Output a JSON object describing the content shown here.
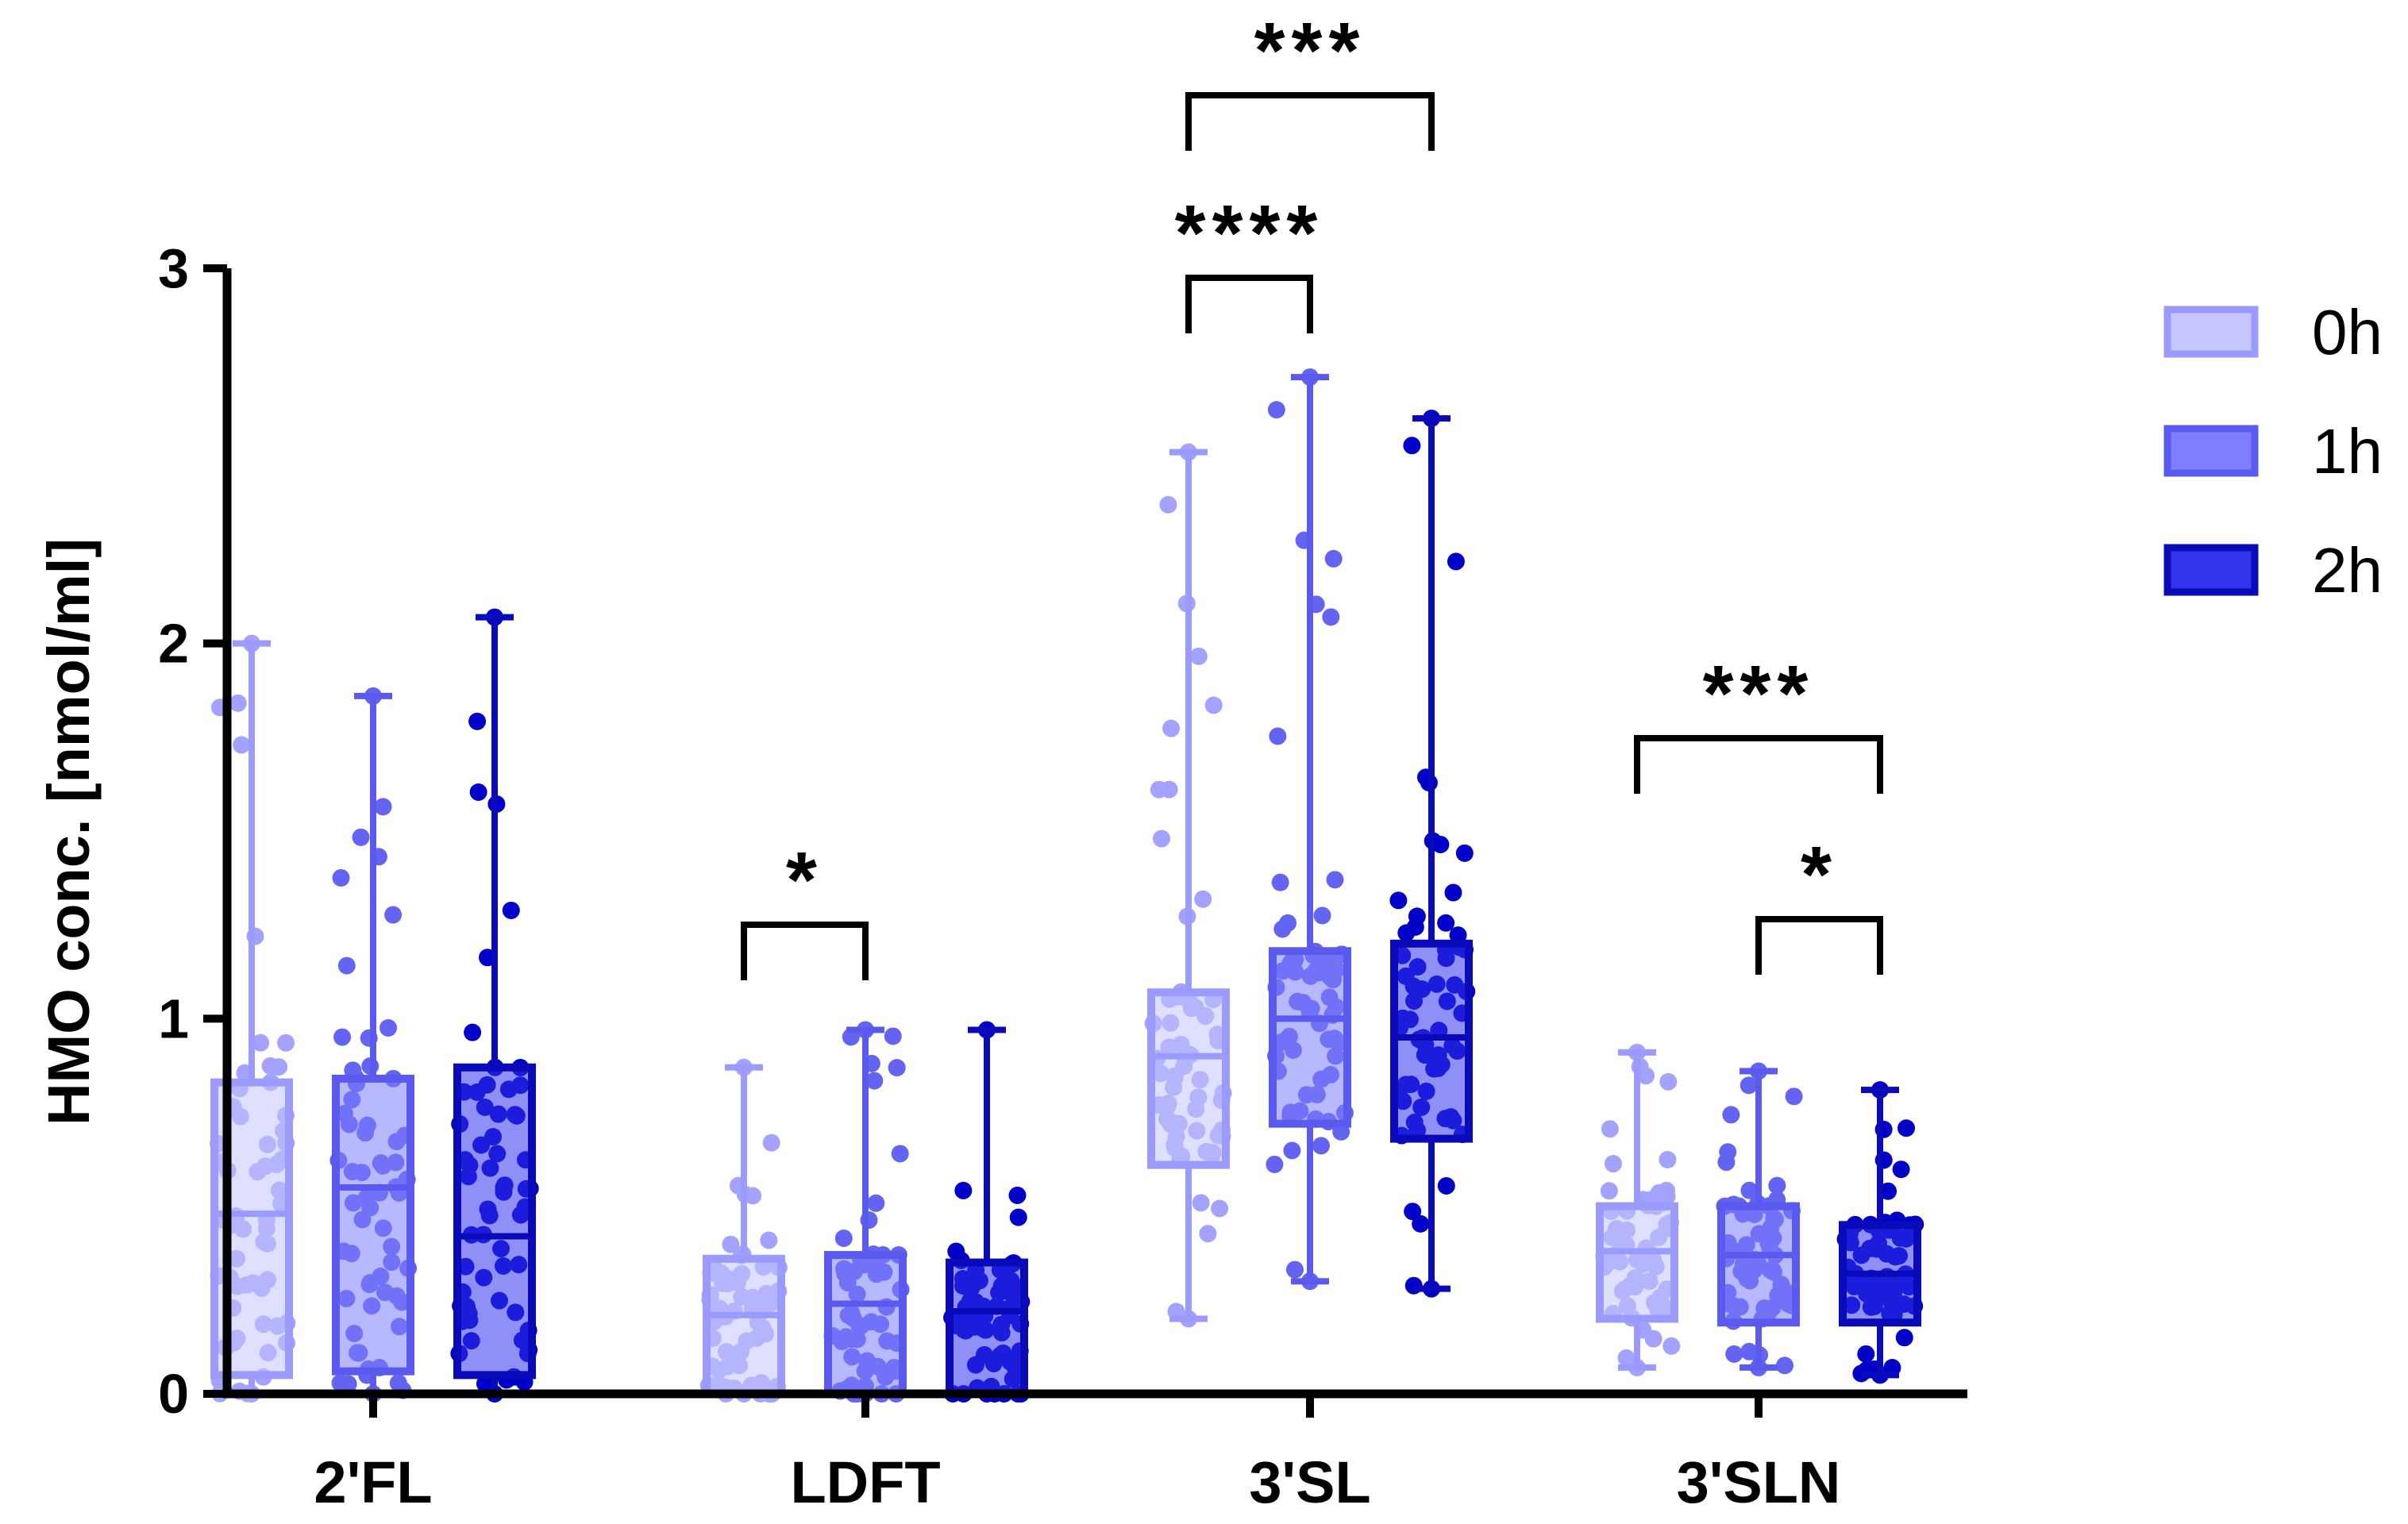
{
  "chart_data": {
    "type": "box",
    "title": "",
    "xlabel": "",
    "ylabel": "HMO conc. [nmol/ml]",
    "ylim": [
      0,
      3
    ],
    "yticks": [
      0,
      1,
      2,
      3
    ],
    "categories": [
      "2'FL",
      "LDFT",
      "3'SL",
      "3'SLN"
    ],
    "series": [
      {
        "name": "0h",
        "fill": "#c5c5ff",
        "stroke": "#9a9aff",
        "point": "#a3a3ff",
        "boxes": [
          {
            "min": 0.0,
            "q1": 0.05,
            "median": 0.48,
            "q3": 0.83,
            "max": 2.0
          },
          {
            "min": 0.0,
            "q1": 0.0,
            "median": 0.21,
            "q3": 0.36,
            "max": 0.87
          },
          {
            "min": 0.2,
            "q1": 0.61,
            "median": 0.9,
            "q3": 1.07,
            "max": 2.51
          },
          {
            "min": 0.07,
            "q1": 0.2,
            "median": 0.38,
            "q3": 0.5,
            "max": 0.91
          }
        ]
      },
      {
        "name": "1h",
        "fill": "#7d7dff",
        "stroke": "#5a5aee",
        "point": "#6464f2",
        "boxes": [
          {
            "min": 0.0,
            "q1": 0.06,
            "median": 0.55,
            "q3": 0.84,
            "max": 1.86
          },
          {
            "min": 0.0,
            "q1": 0.0,
            "median": 0.24,
            "q3": 0.37,
            "max": 0.97
          },
          {
            "min": 0.3,
            "q1": 0.72,
            "median": 1.0,
            "q3": 1.18,
            "max": 2.71
          },
          {
            "min": 0.07,
            "q1": 0.19,
            "median": 0.37,
            "q3": 0.5,
            "max": 0.86
          }
        ]
      },
      {
        "name": "2h",
        "fill": "#3333ee",
        "stroke": "#0a0ab8",
        "point": "#0000c8",
        "boxes": [
          {
            "min": 0.0,
            "q1": 0.05,
            "median": 0.42,
            "q3": 0.87,
            "max": 2.07
          },
          {
            "min": 0.0,
            "q1": 0.0,
            "median": 0.22,
            "q3": 0.35,
            "max": 0.97
          },
          {
            "min": 0.28,
            "q1": 0.68,
            "median": 0.95,
            "q3": 1.2,
            "max": 2.6
          },
          {
            "min": 0.05,
            "q1": 0.19,
            "median": 0.32,
            "q3": 0.45,
            "max": 0.81
          }
        ]
      }
    ],
    "significance": [
      {
        "category": "LDFT",
        "from": "0h",
        "to": "1h",
        "label": "*"
      },
      {
        "category": "3'SL",
        "from": "0h",
        "to": "1h",
        "label": "****"
      },
      {
        "category": "3'SL",
        "from": "0h",
        "to": "2h",
        "label": "***"
      },
      {
        "category": "3'SLN",
        "from": "0h",
        "to": "2h",
        "label": "***"
      },
      {
        "category": "3'SLN",
        "from": "1h",
        "to": "2h",
        "label": "*"
      }
    ],
    "legend": [
      "0h",
      "1h",
      "2h"
    ],
    "legend_position": "right"
  }
}
